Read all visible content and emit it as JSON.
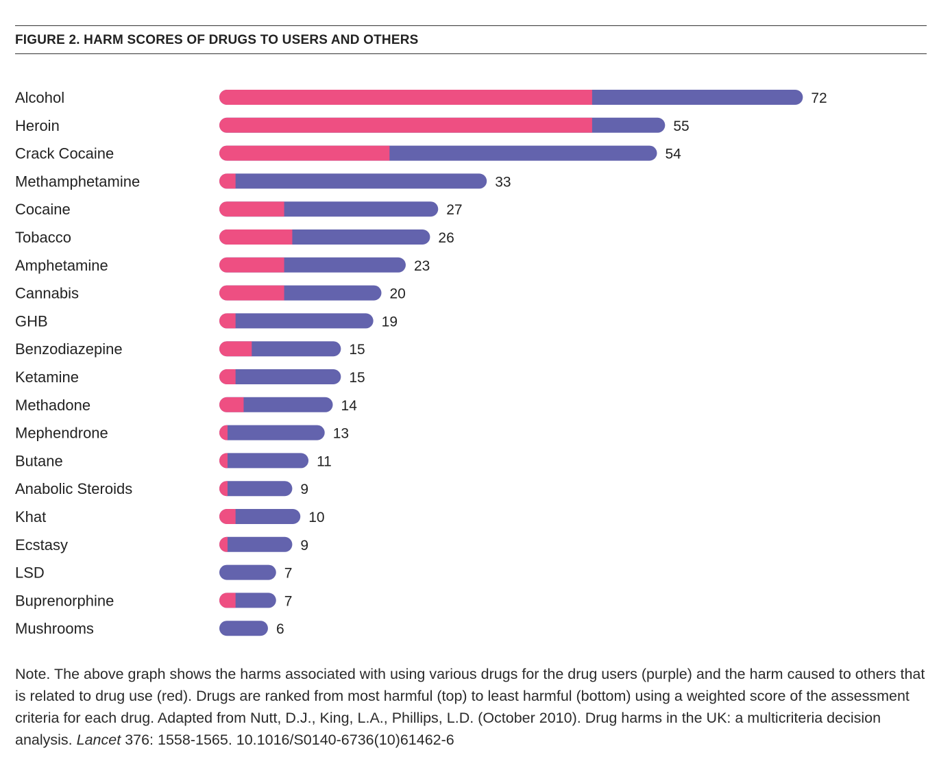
{
  "figure_title": "FIGURE 2. HARM SCORES OF DRUGS TO USERS AND OTHERS",
  "colors": {
    "users": "#6363ad",
    "others": "#ee4f82",
    "text": "#222222"
  },
  "chart_data": {
    "type": "bar",
    "orientation": "horizontal",
    "stacked": true,
    "title": "FIGURE 2. HARM SCORES OF DRUGS TO USERS AND OTHERS",
    "categories": [
      "Alcohol",
      "Heroin",
      "Crack Cocaine",
      "Methamphetamine",
      "Cocaine",
      "Tobacco",
      "Amphetamine",
      "Cannabis",
      "GHB",
      "Benzodiazepine",
      "Ketamine",
      "Methadone",
      "Mephendrone",
      "Butane",
      "Anabolic Steroids",
      "Khat",
      "Ecstasy",
      "LSD",
      "Buprenorphine",
      "Mushrooms"
    ],
    "totals": [
      72,
      55,
      54,
      33,
      27,
      26,
      23,
      20,
      19,
      15,
      15,
      14,
      13,
      11,
      9,
      10,
      9,
      7,
      7,
      6
    ],
    "total_labels": [
      "72",
      "55",
      "54",
      "33",
      "27",
      "26",
      "23",
      "20",
      "19",
      "15",
      "15",
      "14",
      "13",
      "11",
      "9",
      "10",
      "9",
      "7",
      "7",
      "6"
    ],
    "others_values": [
      46,
      46,
      21,
      2,
      8,
      9,
      8,
      8,
      2,
      4,
      2,
      3,
      1,
      1,
      1,
      2,
      1,
      0,
      2,
      0
    ],
    "xlim": [
      0,
      74
    ],
    "grid": false,
    "legend": "none"
  },
  "note": {
    "text": "Note. The above graph shows the harms associated with using various drugs for the drug users (purple) and the harm caused to others that is related to drug use (red). Drugs are ranked from most harmful (top) to least harmful (bottom) using a weighted score of the assessment criteria for each drug. Adapted from Nutt, D.J., King, L.A., Phillips, L.D. (October 2010). Drug harms in the UK: a multicriteria decision analysis.",
    "journal": "Lancet",
    "citation_tail": "376: 1558-1565. 10.1016/S0140-6736(10)61462-6"
  }
}
